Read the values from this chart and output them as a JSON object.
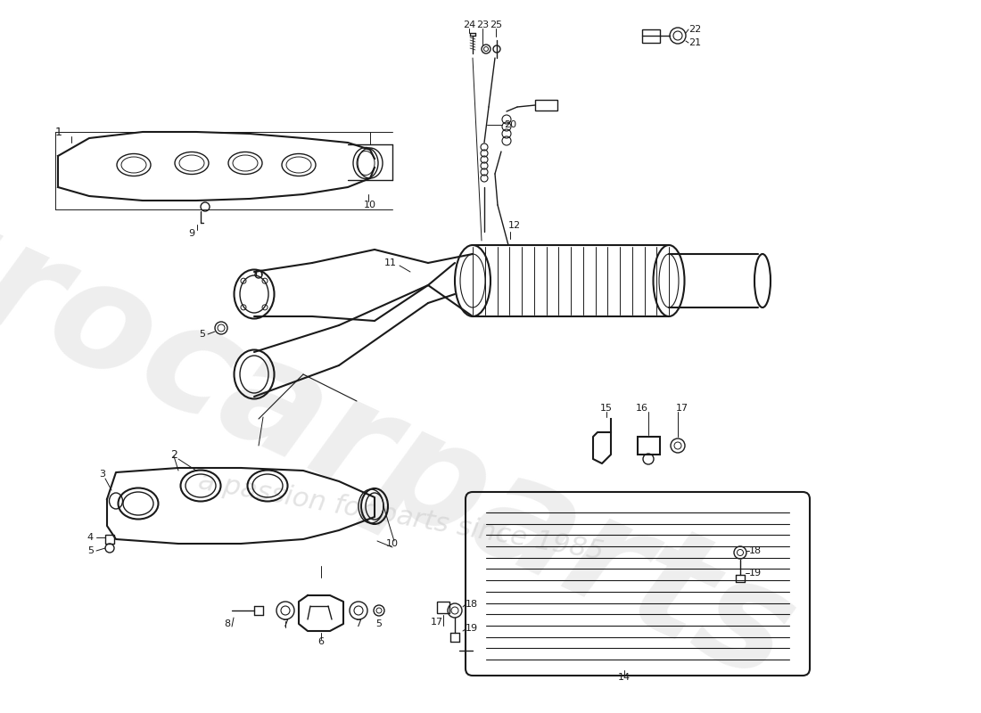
{
  "background_color": "#ffffff",
  "line_color": "#1a1a1a",
  "watermark_color1": "#d0d0d0",
  "watermark_color2": "#c8c8c8",
  "fig_width": 11.0,
  "fig_height": 8.0,
  "dpi": 100,
  "wm_text1": "eurocarparts",
  "wm_text2": "a passion for parts since 1985"
}
